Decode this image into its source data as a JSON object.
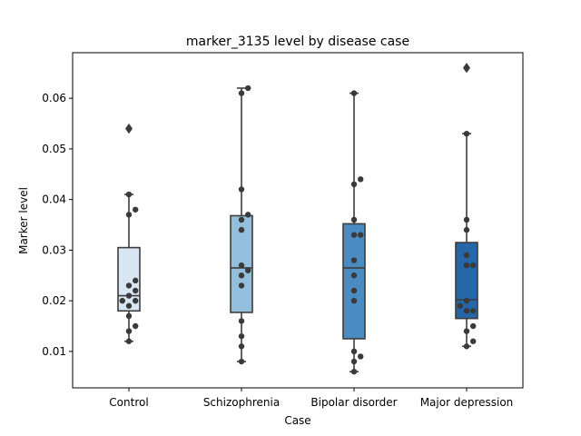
{
  "chart_data": {
    "type": "box",
    "title": "marker_3135 level by disease case",
    "xlabel": "Case",
    "ylabel": "Marker level",
    "ylim": [
      0.0028,
      0.069
    ],
    "yticks": [
      0.01,
      0.02,
      0.03,
      0.04,
      0.05,
      0.06
    ],
    "ytick_labels": [
      "0.01",
      "0.02",
      "0.03",
      "0.04",
      "0.05",
      "0.06"
    ],
    "grid": false,
    "categories": [
      "Control",
      "Schizophrenia",
      "Bipolar disorder",
      "Major depression"
    ],
    "box_colors": [
      "#d8e5f3",
      "#93bfdc",
      "#4a8cc2",
      "#2466a8"
    ],
    "edge_color": "#3d3d3d",
    "point_color": "#3a3a3a",
    "boxes": [
      {
        "q1": 0.018,
        "median": 0.021,
        "q3": 0.0305,
        "whisker_low": 0.012,
        "whisker_high": 0.041,
        "outliers": [
          0.054
        ]
      },
      {
        "q1": 0.0177,
        "median": 0.0265,
        "q3": 0.0368,
        "whisker_low": 0.008,
        "whisker_high": 0.062,
        "outliers": []
      },
      {
        "q1": 0.0125,
        "median": 0.0265,
        "q3": 0.0352,
        "whisker_low": 0.006,
        "whisker_high": 0.061,
        "outliers": []
      },
      {
        "q1": 0.0165,
        "median": 0.0202,
        "q3": 0.0315,
        "whisker_low": 0.011,
        "whisker_high": 0.053,
        "outliers": [
          0.066
        ]
      }
    ],
    "points": [
      [
        0.054,
        0.041,
        0.038,
        0.037,
        0.024,
        0.023,
        0.022,
        0.021,
        0.02,
        0.02,
        0.019,
        0.017,
        0.015,
        0.014,
        0.012
      ],
      [
        0.062,
        0.061,
        0.042,
        0.037,
        0.036,
        0.034,
        0.027,
        0.026,
        0.025,
        0.023,
        0.016,
        0.013,
        0.011,
        0.008
      ],
      [
        0.061,
        0.044,
        0.043,
        0.036,
        0.033,
        0.033,
        0.028,
        0.025,
        0.022,
        0.02,
        0.01,
        0.009,
        0.008,
        0.006
      ],
      [
        0.066,
        0.053,
        0.036,
        0.034,
        0.029,
        0.027,
        0.027,
        0.02,
        0.019,
        0.018,
        0.018,
        0.015,
        0.014,
        0.012,
        0.011
      ]
    ]
  }
}
